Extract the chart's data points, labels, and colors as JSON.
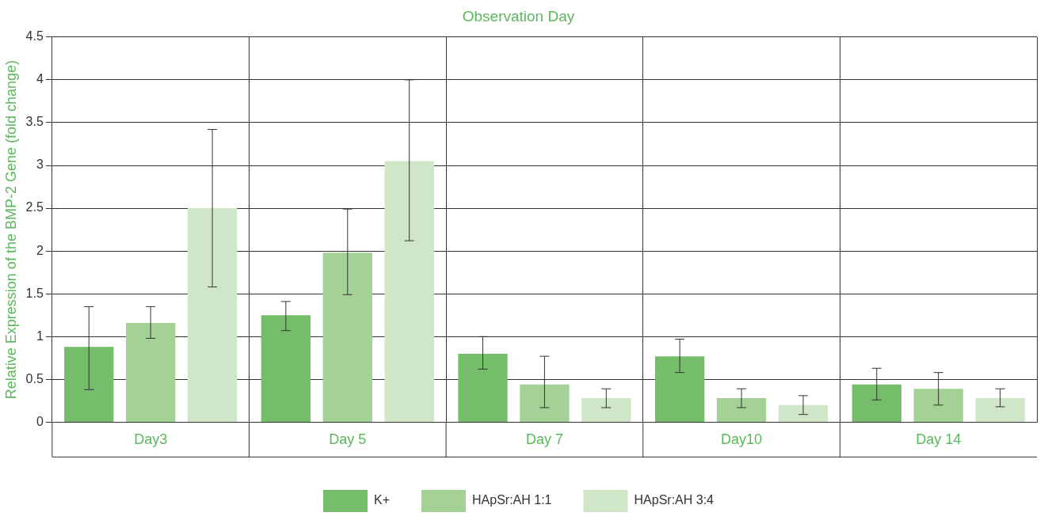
{
  "chart_data": {
    "type": "bar",
    "xlabel": "Observation Day",
    "ylabel": "Relative Expression of the BMP-2 Gene (fold change)",
    "categories": [
      "Day3",
      "Day 5",
      "Day 7",
      "Day10",
      "Day 14"
    ],
    "series": [
      {
        "name": "K+",
        "color": "#75bd6b",
        "values": [
          0.88,
          1.25,
          0.8,
          0.77,
          0.44
        ],
        "errors": [
          [
            0.38,
            1.35
          ],
          [
            1.07,
            1.41
          ],
          [
            0.62,
            1.0
          ],
          [
            0.58,
            0.97
          ],
          [
            0.26,
            0.63
          ]
        ]
      },
      {
        "name": "HApSr:AH 1:1",
        "color": "#a3d196",
        "values": [
          1.16,
          1.98,
          0.44,
          0.28,
          0.39
        ],
        "errors": [
          [
            0.98,
            1.35
          ],
          [
            1.49,
            2.49
          ],
          [
            0.17,
            0.77
          ],
          [
            0.17,
            0.39
          ],
          [
            0.2,
            0.58
          ]
        ]
      },
      {
        "name": "HApSr:AH 3:4",
        "color": "#cfe6c8",
        "values": [
          2.5,
          3.05,
          0.28,
          0.2,
          0.28
        ],
        "errors": [
          [
            1.58,
            3.42
          ],
          [
            2.12,
            4.0
          ],
          [
            0.17,
            0.39
          ],
          [
            0.09,
            0.31
          ],
          [
            0.18,
            0.39
          ]
        ]
      }
    ],
    "ylim": [
      0,
      4.5
    ],
    "yticks": [
      0,
      0.5,
      1,
      1.5,
      2,
      2.5,
      3,
      3.5,
      4,
      4.5
    ],
    "grid": true,
    "legend": "bottom"
  }
}
